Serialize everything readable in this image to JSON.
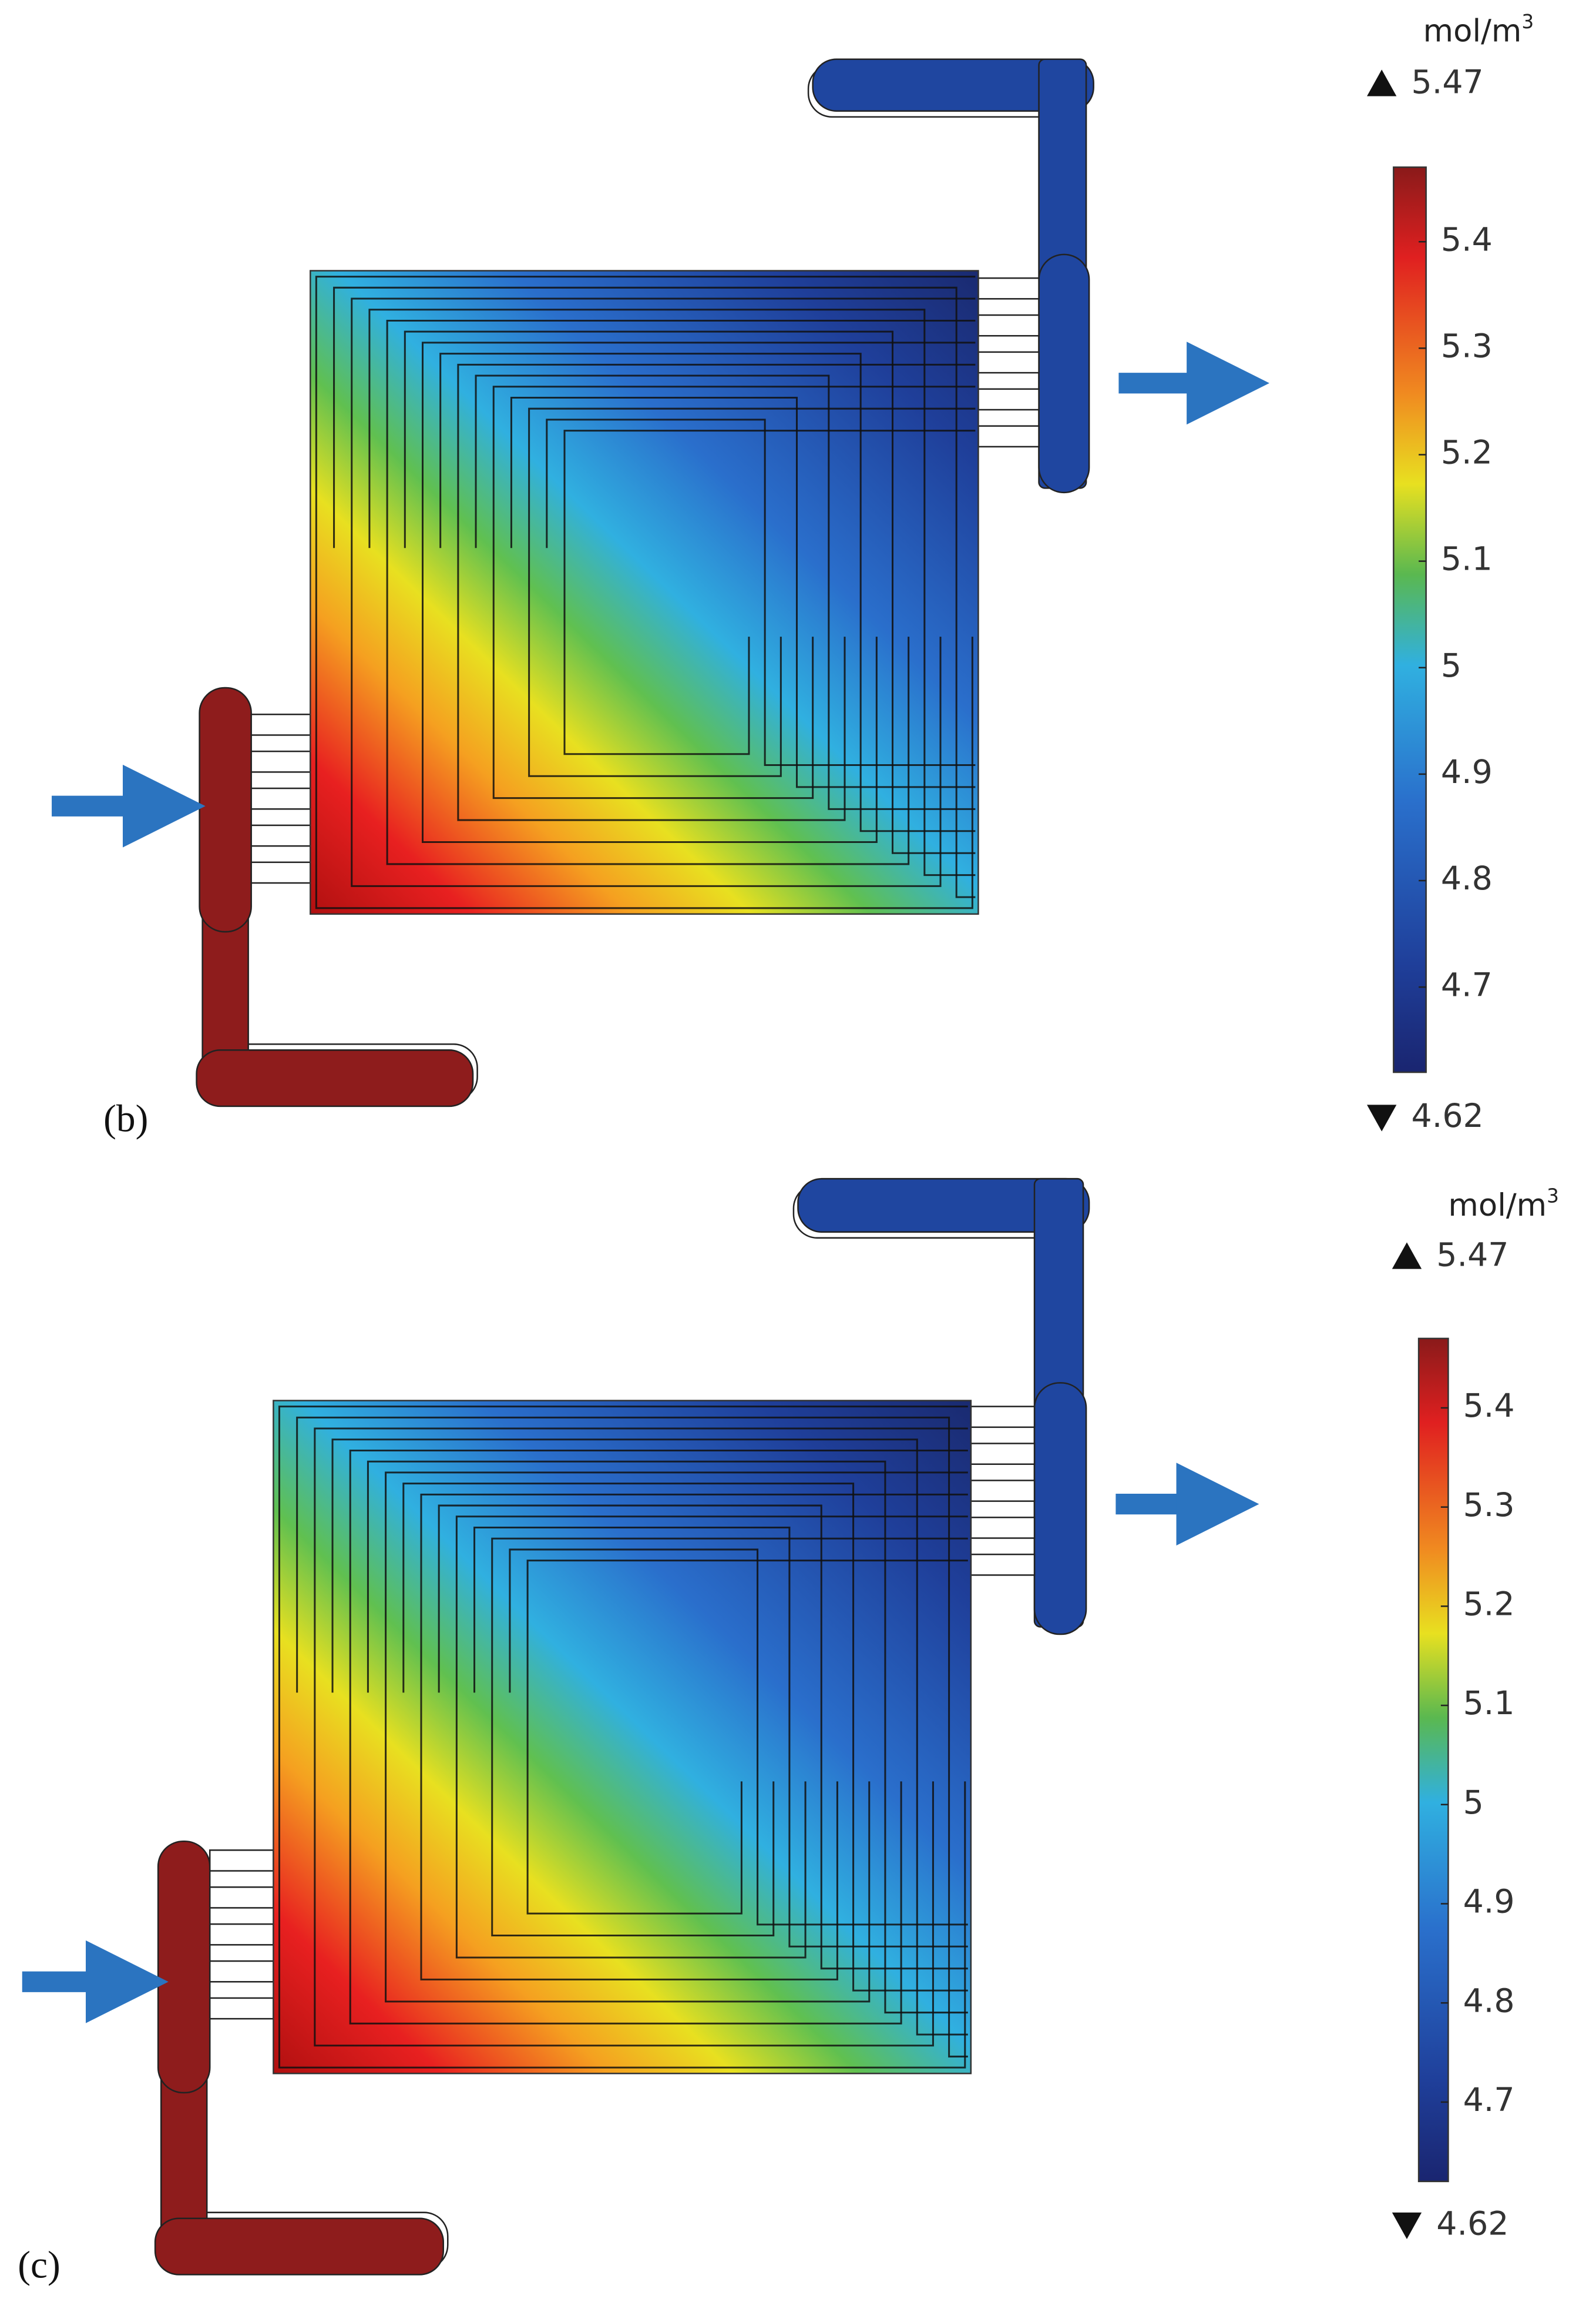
{
  "panels": [
    {
      "label": "(b)",
      "unit": "mol/m",
      "unit_superscript": "3",
      "max": 5.47,
      "min": 4.62,
      "ticks": [
        5.4,
        5.3,
        5.2,
        5.1,
        5,
        4.9,
        4.8,
        4.7
      ]
    },
    {
      "label": "(c)",
      "unit": "mol/m",
      "unit_superscript": "3",
      "max": 5.47,
      "min": 4.62,
      "ticks": [
        5.4,
        5.3,
        5.2,
        5.1,
        5,
        4.9,
        4.8,
        4.7
      ]
    }
  ]
}
